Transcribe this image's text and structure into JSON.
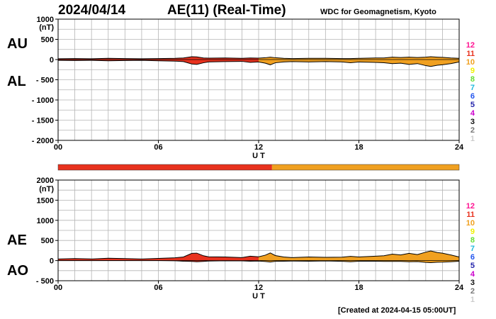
{
  "header": {
    "date": "2024/04/14",
    "title": "AE(11) (Real-Time)",
    "source": "WDC for Geomagnetism, Kyoto"
  },
  "footer": {
    "created": "[Created at 2024-04-15 05:00UT]"
  },
  "colors": {
    "grid": "#b4b4b4",
    "fill_red": "#e8321e",
    "fill_orange": "#f0a020",
    "line": "#000000",
    "hour_colors": {
      "12": "#ff1493",
      "11": "#e8321e",
      "10": "#f0a020",
      "9": "#f0f000",
      "8": "#66dd33",
      "7": "#22bbdd",
      "6": "#2255ee",
      "5": "#2222aa",
      "4": "#cc00cc",
      "3": "#111111",
      "2": "#777777",
      "1": "#cccccc"
    }
  },
  "chart_data": [
    {
      "id": "au-al",
      "type": "area",
      "series_labels": [
        "AU",
        "AL"
      ],
      "unit": "(nT)",
      "xlabel": "U T",
      "xlim": [
        0,
        24
      ],
      "ylim": [
        -2000,
        1000
      ],
      "yticks": [
        1000,
        500,
        0,
        -500,
        -1000,
        -1500,
        -2000
      ],
      "ytick_labels": [
        "1000",
        "500",
        "0",
        "- 500",
        "- 1000",
        "- 1500",
        "- 2000"
      ],
      "xticks": [
        0,
        6,
        12,
        18,
        24
      ],
      "xtick_labels": [
        "00",
        "06",
        "12",
        "18",
        "24"
      ],
      "hour_legend": [
        "12",
        "11",
        "10",
        "9",
        "8",
        "7",
        "6",
        "5",
        "4",
        "3",
        "2",
        "1"
      ],
      "x": [
        0,
        1,
        2,
        3,
        4,
        5,
        6,
        7,
        7.5,
        8,
        8.3,
        8.7,
        9,
        10,
        11,
        11.5,
        12,
        12.4,
        12.7,
        13,
        13.5,
        14,
        15,
        16,
        17,
        17.5,
        18,
        19,
        19.5,
        20,
        20.5,
        21,
        21.5,
        22,
        22.3,
        22.7,
        23,
        23.5,
        24
      ],
      "upper": [
        20,
        25,
        20,
        30,
        25,
        20,
        25,
        30,
        40,
        70,
        65,
        40,
        35,
        40,
        30,
        40,
        35,
        45,
        60,
        45,
        30,
        25,
        30,
        30,
        25,
        25,
        30,
        40,
        40,
        60,
        50,
        60,
        50,
        60,
        70,
        60,
        55,
        40,
        30
      ],
      "lower": [
        -20,
        -25,
        -20,
        -30,
        -25,
        -20,
        -30,
        -40,
        -50,
        -110,
        -120,
        -80,
        -60,
        -50,
        -45,
        -70,
        -60,
        -90,
        -130,
        -80,
        -60,
        -50,
        -60,
        -50,
        -60,
        -80,
        -60,
        -70,
        -80,
        -100,
        -90,
        -120,
        -100,
        -150,
        -170,
        -140,
        -130,
        -100,
        -60
      ],
      "hour_fill": [
        "11",
        "11",
        "11",
        "11",
        "11",
        "11",
        "11",
        "11",
        "11",
        "11",
        "11",
        "11",
        "10",
        "10",
        "10",
        "10",
        "10",
        "10",
        "10",
        "10",
        "10",
        "10",
        "10",
        "10"
      ]
    },
    {
      "id": "ae-ao",
      "type": "area",
      "series_labels": [
        "AE",
        "AO"
      ],
      "unit": "(nT)",
      "xlabel": "U T",
      "xlim": [
        0,
        24
      ],
      "ylim": [
        -500,
        2000
      ],
      "yticks": [
        2000,
        1500,
        1000,
        500,
        0,
        -500
      ],
      "ytick_labels": [
        "2000",
        "1500",
        "1000",
        "500",
        "0",
        "- 500"
      ],
      "xticks": [
        0,
        6,
        12,
        18,
        24
      ],
      "xtick_labels": [
        "00",
        "06",
        "12",
        "18",
        "24"
      ],
      "hour_legend": [
        "12",
        "11",
        "10",
        "9",
        "8",
        "7",
        "6",
        "5",
        "4",
        "3",
        "2",
        "1"
      ],
      "x": [
        0,
        1,
        2,
        3,
        4,
        5,
        6,
        7,
        7.5,
        8,
        8.3,
        8.7,
        9,
        10,
        11,
        11.5,
        12,
        12.4,
        12.7,
        13,
        13.5,
        14,
        15,
        16,
        17,
        17.5,
        18,
        19,
        19.5,
        20,
        20.5,
        21,
        21.5,
        22,
        22.3,
        22.7,
        23,
        23.5,
        24
      ],
      "upper": [
        40,
        50,
        40,
        60,
        50,
        40,
        55,
        70,
        90,
        180,
        185,
        120,
        95,
        90,
        75,
        110,
        95,
        135,
        190,
        125,
        90,
        75,
        90,
        80,
        85,
        105,
        90,
        110,
        120,
        160,
        140,
        180,
        150,
        210,
        240,
        200,
        185,
        140,
        90
      ],
      "lower": [
        0,
        0,
        0,
        0,
        0,
        0,
        0,
        -5,
        -15,
        -20,
        -28,
        -20,
        -12,
        -5,
        -8,
        -15,
        -12,
        -22,
        -35,
        -18,
        -15,
        -12,
        -15,
        -10,
        -18,
        -28,
        -15,
        -15,
        -20,
        -20,
        -20,
        -30,
        -25,
        -45,
        -50,
        -40,
        -38,
        -30,
        -15
      ],
      "hour_fill": [
        "11",
        "11",
        "11",
        "11",
        "11",
        "11",
        "11",
        "11",
        "11",
        "11",
        "11",
        "11",
        "10",
        "10",
        "10",
        "10",
        "10",
        "10",
        "10",
        "10",
        "10",
        "10",
        "10",
        "10"
      ]
    }
  ],
  "strip": {
    "x_start": 0,
    "x_split": 12.8,
    "x_end": 24,
    "left_hour": "11",
    "right_hour": "10"
  }
}
